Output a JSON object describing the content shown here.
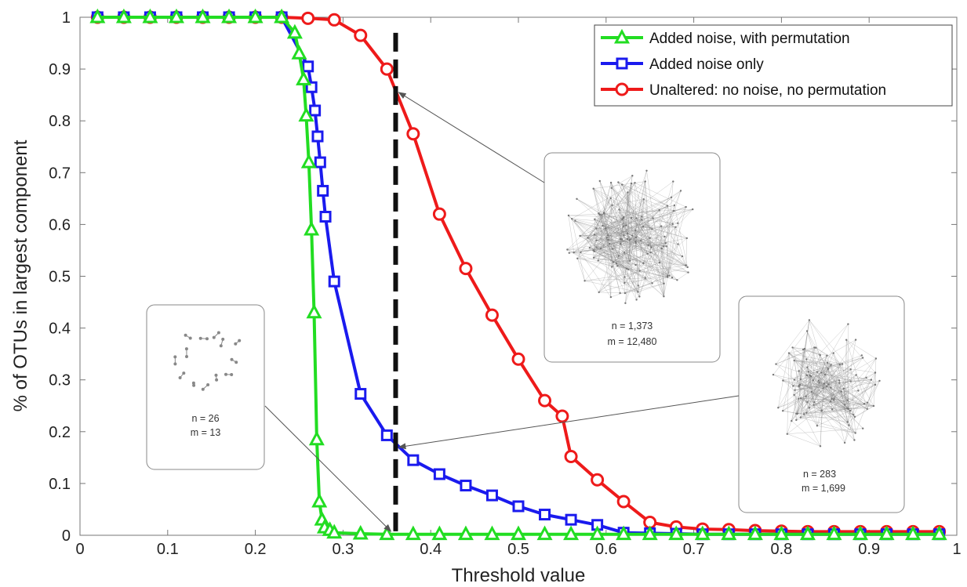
{
  "chart_data": {
    "type": "line",
    "title": "",
    "xlabel": "Threshold value",
    "ylabel": "% of OTUs in largest component",
    "xlim": [
      0,
      1
    ],
    "ylim": [
      0,
      1
    ],
    "xticks": [
      "0",
      "0.1",
      "0.2",
      "0.3",
      "0.4",
      "0.5",
      "0.6",
      "0.7",
      "0.8",
      "0.9",
      "1"
    ],
    "yticks": [
      "0",
      "0.1",
      "0.2",
      "0.3",
      "0.4",
      "0.5",
      "0.6",
      "0.7",
      "0.8",
      "0.9",
      "1"
    ],
    "grid": false,
    "legend_position": "top-right",
    "threshold_marker": 0.36,
    "series": [
      {
        "name": "Added noise, with permutation",
        "color": "#22dd22",
        "marker": "triangle",
        "x": [
          0.02,
          0.05,
          0.08,
          0.11,
          0.14,
          0.17,
          0.2,
          0.23,
          0.245,
          0.25,
          0.255,
          0.258,
          0.261,
          0.264,
          0.267,
          0.27,
          0.273,
          0.276,
          0.279,
          0.285,
          0.29,
          0.32,
          0.35,
          0.38,
          0.41,
          0.44,
          0.47,
          0.5,
          0.53,
          0.56,
          0.59,
          0.62,
          0.65,
          0.68,
          0.71,
          0.74,
          0.77,
          0.8,
          0.83,
          0.86,
          0.89,
          0.92,
          0.95,
          0.98
        ],
        "y": [
          1,
          1,
          1,
          1,
          1,
          1,
          1,
          1,
          0.97,
          0.93,
          0.88,
          0.81,
          0.72,
          0.59,
          0.43,
          0.185,
          0.065,
          0.03,
          0.015,
          0.01,
          0.005,
          0.003,
          0.002,
          0.002,
          0.002,
          0.002,
          0.002,
          0.002,
          0.002,
          0.002,
          0.002,
          0.002,
          0.002,
          0.002,
          0.002,
          0.002,
          0.002,
          0.002,
          0.002,
          0.002,
          0.002,
          0.002,
          0.002,
          0.002
        ]
      },
      {
        "name": "Added noise only",
        "color": "#1a1aee",
        "marker": "square",
        "x": [
          0.02,
          0.05,
          0.08,
          0.11,
          0.14,
          0.17,
          0.2,
          0.23,
          0.26,
          0.264,
          0.268,
          0.271,
          0.274,
          0.277,
          0.28,
          0.29,
          0.32,
          0.35,
          0.38,
          0.41,
          0.44,
          0.47,
          0.5,
          0.53,
          0.56,
          0.59,
          0.62,
          0.65,
          0.68,
          0.71,
          0.74,
          0.77,
          0.8,
          0.83,
          0.86,
          0.89,
          0.92,
          0.95,
          0.98
        ],
        "y": [
          1,
          1,
          1,
          1,
          1,
          1,
          1,
          1,
          0.905,
          0.865,
          0.82,
          0.77,
          0.72,
          0.665,
          0.615,
          0.49,
          0.273,
          0.193,
          0.145,
          0.118,
          0.096,
          0.077,
          0.056,
          0.04,
          0.03,
          0.02,
          0.005,
          0.004,
          0.003,
          0.002,
          0.002,
          0.002,
          0.002,
          0.002,
          0.002,
          0.002,
          0.002,
          0.002,
          0.002
        ]
      },
      {
        "name": "Unaltered: no noise, no permutation",
        "color": "#ee1a1a",
        "marker": "circle",
        "x": [
          0.02,
          0.05,
          0.08,
          0.11,
          0.14,
          0.17,
          0.2,
          0.23,
          0.26,
          0.29,
          0.32,
          0.35,
          0.38,
          0.41,
          0.44,
          0.47,
          0.5,
          0.53,
          0.55,
          0.56,
          0.59,
          0.62,
          0.65,
          0.68,
          0.71,
          0.74,
          0.77,
          0.8,
          0.83,
          0.86,
          0.89,
          0.92,
          0.95,
          0.98
        ],
        "y": [
          1,
          1,
          1,
          1,
          1,
          1,
          1,
          1,
          0.998,
          0.995,
          0.965,
          0.9,
          0.775,
          0.62,
          0.515,
          0.425,
          0.34,
          0.26,
          0.23,
          0.152,
          0.107,
          0.065,
          0.025,
          0.016,
          0.012,
          0.011,
          0.009,
          0.008,
          0.007,
          0.007,
          0.007,
          0.007,
          0.007,
          0.007
        ]
      }
    ],
    "annotations": [
      {
        "id": "inset-1",
        "n_text": "n = 1,373",
        "m_text": "m = 12,480",
        "target": {
          "x": 0.36,
          "y": 0.855
        }
      },
      {
        "id": "inset-2",
        "n_text": "n = 283",
        "m_text": "m = 1,699",
        "target": {
          "x": 0.36,
          "y": 0.17
        }
      },
      {
        "id": "inset-3",
        "n_text": "n = 26",
        "m_text": "m = 13",
        "target": {
          "x": 0.36,
          "y": 0.0
        }
      }
    ]
  }
}
